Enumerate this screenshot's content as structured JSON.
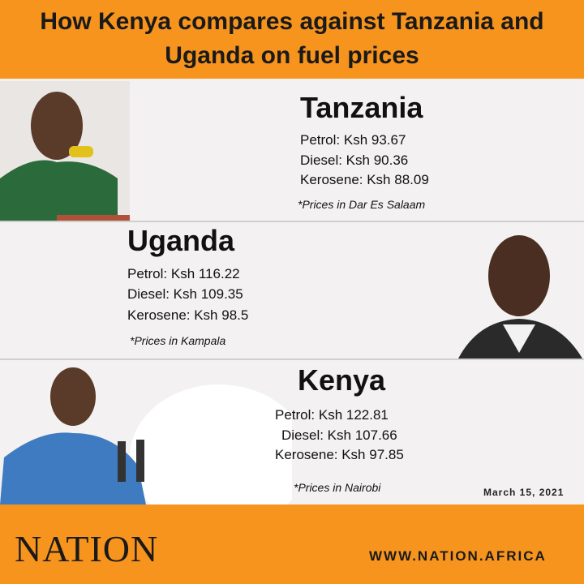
{
  "header": {
    "title": "How Kenya compares against Tanzania and Uganda on fuel prices"
  },
  "sections": [
    {
      "country": "Tanzania",
      "prices": [
        "Petrol: Ksh 93.67",
        "Diesel: Ksh 90.36",
        "Kerosene: Ksh 88.09"
      ],
      "note": "*Prices in Dar Es Salaam"
    },
    {
      "country": "Uganda",
      "prices": [
        "Petrol: Ksh 116.22",
        "Diesel: Ksh 109.35",
        "Kerosene: Ksh 98.5"
      ],
      "note": "*Prices in Kampala"
    },
    {
      "country": "Kenya",
      "prices": [
        "Petrol: Ksh 122.81",
        "Diesel: Ksh 107.66",
        "Kerosene: Ksh 97.85"
      ],
      "note": "*Prices in Nairobi"
    }
  ],
  "date": "March 15, 2021",
  "footer": {
    "brand": "NATION",
    "url": "WWW.NATION.AFRICA"
  }
}
